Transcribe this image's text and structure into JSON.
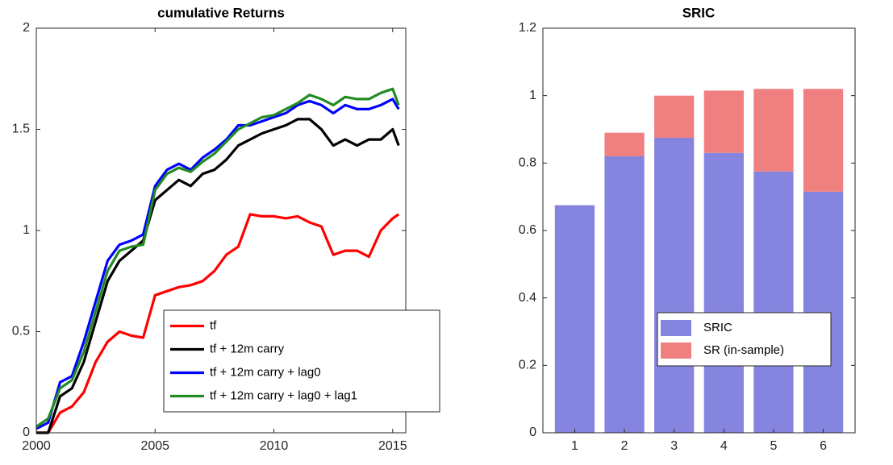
{
  "chart_data": [
    {
      "type": "line",
      "title": "cumulative Returns",
      "x": [
        2000,
        2000.5,
        2001,
        2001.5,
        2002,
        2002.5,
        2003,
        2003.5,
        2004,
        2004.5,
        2005,
        2005.5,
        2006,
        2006.5,
        2007,
        2007.5,
        2008,
        2008.5,
        2009,
        2009.5,
        2010,
        2010.5,
        2011,
        2011.5,
        2012,
        2012.5,
        2013,
        2013.5,
        2014,
        2014.5,
        2015,
        2015.25
      ],
      "series": [
        {
          "name": "tf",
          "color": "#ff0000",
          "values": [
            0,
            0,
            0.1,
            0.13,
            0.2,
            0.35,
            0.45,
            0.5,
            0.48,
            0.47,
            0.68,
            0.7,
            0.72,
            0.73,
            0.75,
            0.8,
            0.88,
            0.92,
            1.08,
            1.07,
            1.07,
            1.06,
            1.07,
            1.04,
            1.02,
            0.88,
            0.9,
            0.9,
            0.87,
            1.0,
            1.06,
            1.08
          ]
        },
        {
          "name": "tf + 12m carry",
          "color": "#000000",
          "values": [
            0,
            0,
            0.18,
            0.22,
            0.35,
            0.55,
            0.75,
            0.85,
            0.9,
            0.95,
            1.15,
            1.2,
            1.25,
            1.22,
            1.28,
            1.3,
            1.35,
            1.42,
            1.45,
            1.48,
            1.5,
            1.52,
            1.55,
            1.55,
            1.5,
            1.42,
            1.45,
            1.42,
            1.45,
            1.45,
            1.5,
            1.42
          ]
        },
        {
          "name": "tf + 12m carry + lag0",
          "color": "#0000ff",
          "values": [
            0.02,
            0.05,
            0.25,
            0.28,
            0.45,
            0.65,
            0.85,
            0.93,
            0.95,
            0.98,
            1.22,
            1.3,
            1.33,
            1.3,
            1.36,
            1.4,
            1.45,
            1.52,
            1.52,
            1.54,
            1.56,
            1.58,
            1.62,
            1.64,
            1.62,
            1.58,
            1.62,
            1.6,
            1.6,
            1.62,
            1.65,
            1.6
          ]
        },
        {
          "name": "tf + 12m carry + lag0 + lag1",
          "color": "#228b22",
          "values": [
            0.03,
            0.07,
            0.22,
            0.26,
            0.4,
            0.6,
            0.8,
            0.9,
            0.92,
            0.93,
            1.2,
            1.28,
            1.31,
            1.29,
            1.34,
            1.38,
            1.44,
            1.5,
            1.53,
            1.56,
            1.57,
            1.6,
            1.63,
            1.67,
            1.65,
            1.62,
            1.66,
            1.65,
            1.65,
            1.68,
            1.7,
            1.62
          ]
        }
      ],
      "xlim": [
        2000,
        2015.55
      ],
      "xticks": [
        2000,
        2005,
        2010,
        2015
      ],
      "ylim": [
        0,
        2
      ],
      "yticks": [
        0,
        0.5,
        1,
        1.5,
        2
      ],
      "legend": "lower right"
    },
    {
      "type": "stacked_bar",
      "title": "SRIC",
      "categories": [
        "1",
        "2",
        "3",
        "4",
        "5",
        "6"
      ],
      "series": [
        {
          "name": "SRIC",
          "color": "#8585e0",
          "values": [
            0.675,
            0.82,
            0.875,
            0.83,
            0.775,
            0.715
          ]
        },
        {
          "name": "SR (in-sample)",
          "color": "#f08080",
          "values": [
            0,
            0.07,
            0.125,
            0.185,
            0.245,
            0.305
          ]
        }
      ],
      "xlim": [
        0.36,
        6.64
      ],
      "ylim": [
        0,
        1.2
      ],
      "yticks": [
        0,
        0.2,
        0.4,
        0.6,
        0.8,
        1,
        1.2
      ],
      "legend": "lower center"
    }
  ]
}
